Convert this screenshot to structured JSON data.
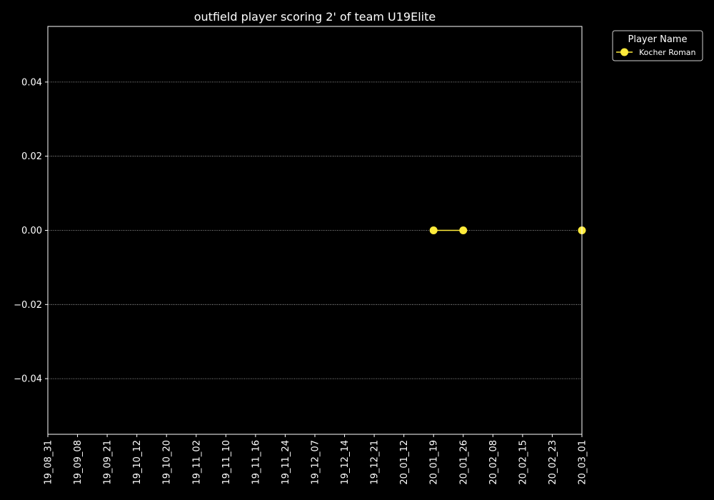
{
  "chart_data": {
    "type": "line",
    "title": "outfield player scoring 2' of team U19Elite",
    "xlabel": "",
    "ylabel": "",
    "categories": [
      "19_08_31",
      "19_09_08",
      "19_09_21",
      "19_10_12",
      "19_10_20",
      "19_11_02",
      "19_11_10",
      "19_11_16",
      "19_11_24",
      "19_12_07",
      "19_12_14",
      "19_12_21",
      "20_01_12",
      "20_01_19",
      "20_01_26",
      "20_02_08",
      "20_02_15",
      "20_02_23",
      "20_03_01"
    ],
    "ylim": [
      -0.055,
      0.055
    ],
    "yticks": [
      "0.04",
      "0.02",
      "0.00",
      "−0.02",
      "−0.04"
    ],
    "grid": "horizontal-dotted",
    "legend": {
      "title": "Player Name",
      "placement": "outside-top-right"
    },
    "series": [
      {
        "name": "Kocher Roman",
        "color": "#ffeb3b",
        "points": [
          {
            "x": "20_01_19",
            "y": 0.0
          },
          {
            "x": "20_01_26",
            "y": 0.0
          },
          {
            "x": "20_03_01",
            "y": 0.0
          }
        ],
        "segments": [
          [
            "20_01_19",
            "20_01_26"
          ]
        ]
      }
    ],
    "colors": {
      "background": "#000000",
      "foreground": "#ffffff",
      "grid": "#ffffff"
    }
  }
}
